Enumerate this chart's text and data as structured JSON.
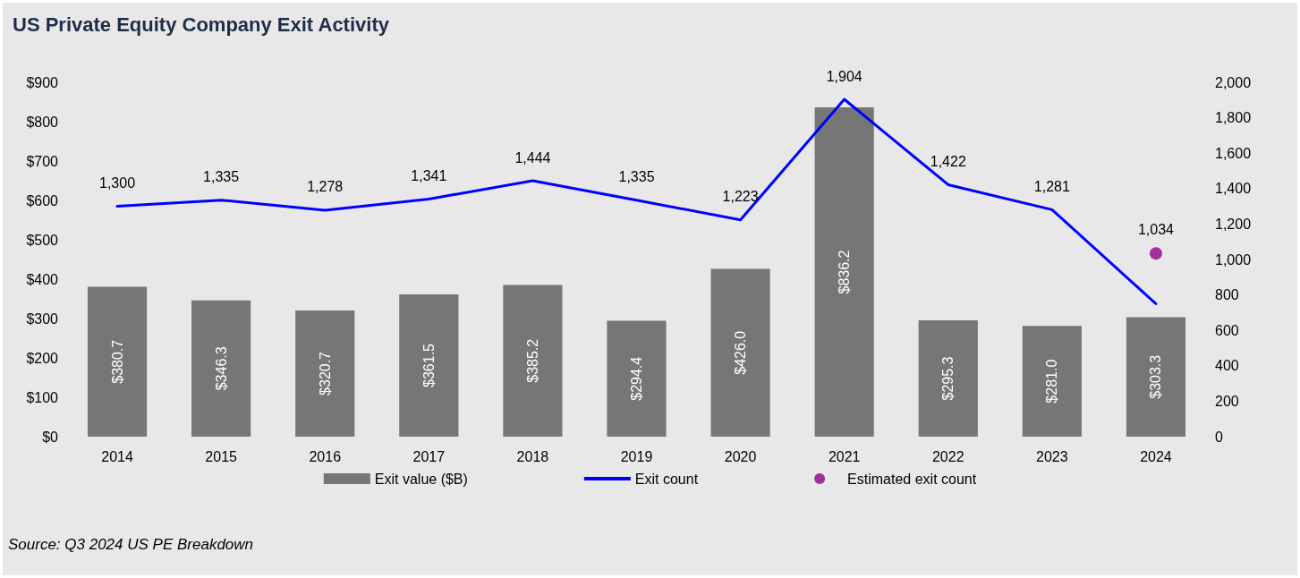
{
  "chart_data": {
    "type": "bar",
    "title": "US Private Equity Company Exit Activity",
    "categories": [
      "2014",
      "2015",
      "2016",
      "2017",
      "2018",
      "2019",
      "2020",
      "2021",
      "2022",
      "2023",
      "2024"
    ],
    "series": [
      {
        "name": "Exit value ($B)",
        "color": "#767676",
        "values": [
          380.7,
          346.3,
          320.7,
          361.5,
          385.2,
          294.4,
          426.0,
          836.2,
          295.3,
          281.0,
          303.3
        ],
        "value_labels": [
          "$380.7",
          "$346.3",
          "$320.7",
          "$361.5",
          "$385.2",
          "$294.4",
          "$426.0",
          "$836.2",
          "$295.3",
          "$281.0",
          "$303.3"
        ]
      },
      {
        "name": "Exit count",
        "type": "line",
        "axis": "y2",
        "marker": "none",
        "color": "#0000ff",
        "values": [
          1300,
          1335,
          1278,
          1341,
          1444,
          1335,
          1223,
          1904,
          1422,
          1281,
          750
        ],
        "value_labels": [
          "1,300",
          "1,335",
          "1,278",
          "1,341",
          "1,444",
          "1,335",
          "1,223",
          "1,904",
          "1,422",
          "1,281",
          null
        ]
      },
      {
        "name": "Estimated exit count",
        "type": "scatter",
        "axis": "y2",
        "marker": "circle",
        "color": "#a0309a",
        "values": [
          null,
          null,
          null,
          null,
          null,
          null,
          null,
          null,
          null,
          null,
          1034
        ],
        "value_labels": [
          null,
          null,
          null,
          null,
          null,
          null,
          null,
          null,
          null,
          null,
          "1,034"
        ]
      }
    ],
    "ylim": [
      0,
      900
    ],
    "yticks": [
      {
        "value": 0,
        "label": "$0"
      },
      {
        "value": 100,
        "label": "$100"
      },
      {
        "value": 200,
        "label": "$200"
      },
      {
        "value": 300,
        "label": "$300"
      },
      {
        "value": 400,
        "label": "$400"
      },
      {
        "value": 500,
        "label": "$500"
      },
      {
        "value": 600,
        "label": "$600"
      },
      {
        "value": 700,
        "label": "$700"
      },
      {
        "value": 800,
        "label": "$800"
      },
      {
        "value": 900,
        "label": "$900"
      }
    ],
    "y2lim": [
      0,
      2000
    ],
    "y2ticks": [
      0,
      200,
      400,
      600,
      800,
      {
        "value": 1000,
        "label": "1,000"
      },
      {
        "value": 1200,
        "label": "1,200"
      },
      {
        "value": 1400,
        "label": "1,400"
      },
      {
        "value": 1600,
        "label": "1,600"
      },
      {
        "value": 1800,
        "label": "1,800"
      },
      {
        "value": 2000,
        "label": "2,000"
      }
    ],
    "grid": false,
    "legend": "bottom",
    "annotations": [
      "Source: Q3 2024 US PE Breakdown"
    ]
  }
}
